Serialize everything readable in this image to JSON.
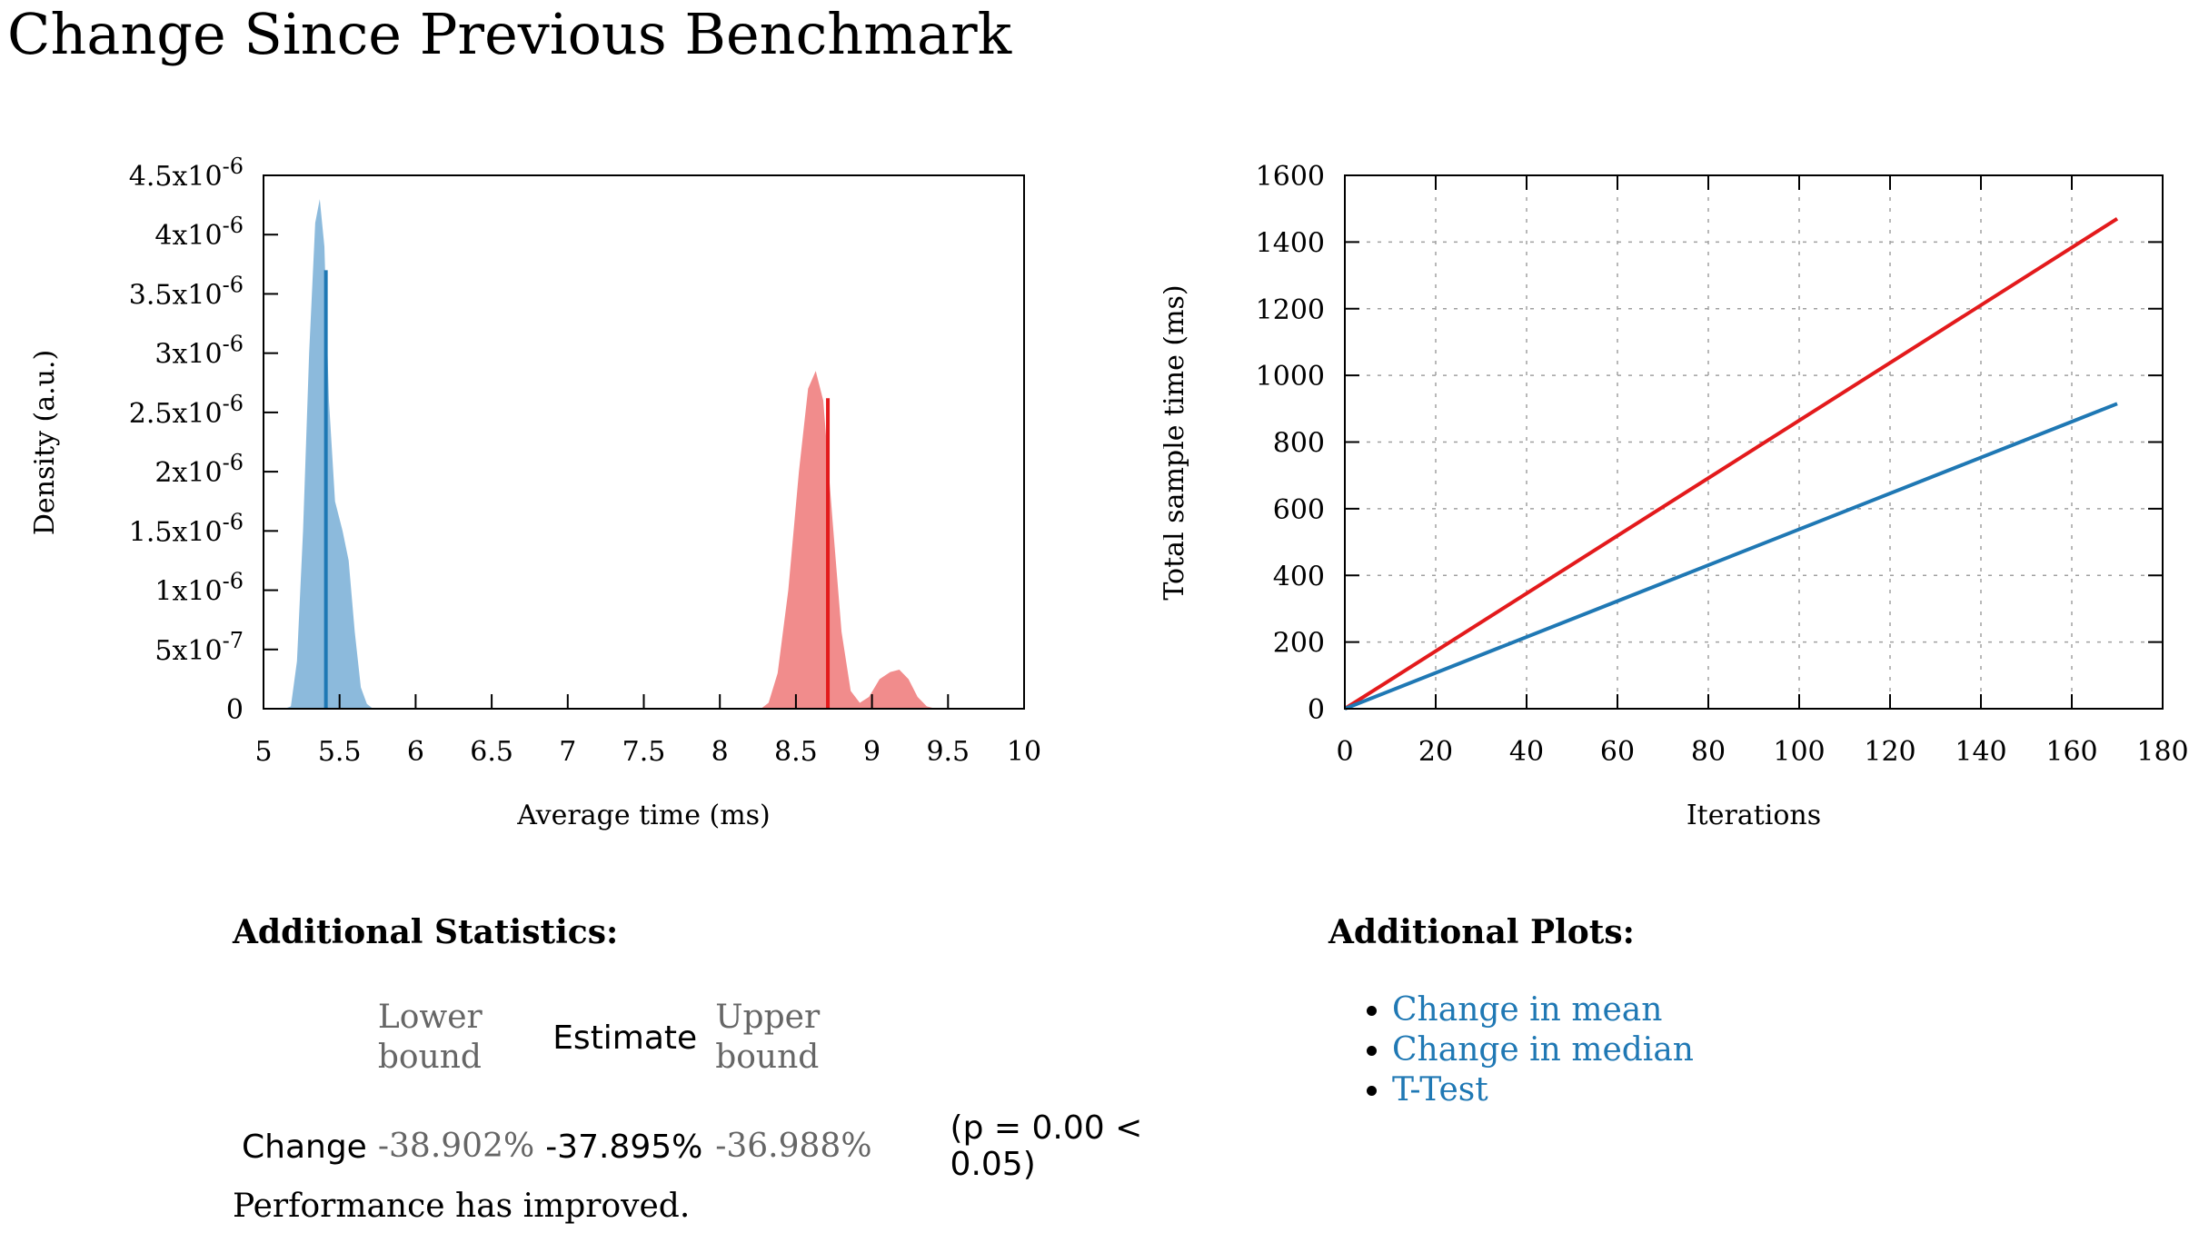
{
  "page": {
    "title": "Change Since Previous Benchmark"
  },
  "colors": {
    "blue": "#1f78b4",
    "blue_fill": "#7fb3d8",
    "red": "#e31a1c",
    "red_fill": "#f08080",
    "link": "#1f78b4"
  },
  "chart_data": [
    {
      "type": "area",
      "xlabel": "Average time (ms)",
      "ylabel": "Density (a.u.)",
      "xlim": [
        5,
        10
      ],
      "ylim": [
        0,
        4.5e-06
      ],
      "x_ticks": [
        "5",
        "5.5",
        "6",
        "6.5",
        "7",
        "7.5",
        "8",
        "8.5",
        "9",
        "9.5",
        "10"
      ],
      "y_ticks": [
        {
          "mantissa": "0",
          "exp": ""
        },
        {
          "mantissa": "5x10",
          "exp": "-7"
        },
        {
          "mantissa": "1x10",
          "exp": "-6"
        },
        {
          "mantissa": "1.5x10",
          "exp": "-6"
        },
        {
          "mantissa": "2x10",
          "exp": "-6"
        },
        {
          "mantissa": "2.5x10",
          "exp": "-6"
        },
        {
          "mantissa": "3x10",
          "exp": "-6"
        },
        {
          "mantissa": "3.5x10",
          "exp": "-6"
        },
        {
          "mantissa": "4x10",
          "exp": "-6"
        },
        {
          "mantissa": "4.5x10",
          "exp": "-6"
        }
      ],
      "series": [
        {
          "color": "#7fb3d8",
          "line_color": "#1f78b4",
          "points": [
            [
              5.14,
              0
            ],
            [
              5.18,
              2e-08
            ],
            [
              5.22,
              4e-07
            ],
            [
              5.26,
              1.5e-06
            ],
            [
              5.3,
              3e-06
            ],
            [
              5.34,
              4.1e-06
            ],
            [
              5.37,
              4.3e-06
            ],
            [
              5.4,
              3.9e-06
            ],
            [
              5.43,
              2.6e-06
            ],
            [
              5.47,
              1.75e-06
            ],
            [
              5.52,
              1.5e-06
            ],
            [
              5.56,
              1.25e-06
            ],
            [
              5.6,
              6.5e-07
            ],
            [
              5.64,
              1.8e-07
            ],
            [
              5.68,
              4e-08
            ],
            [
              5.72,
              0
            ]
          ],
          "estimate_x": 5.41,
          "estimate_y": 3.7e-06
        },
        {
          "color": "#f08080",
          "line_color": "#e31a1c",
          "points": [
            [
              8.27,
              0
            ],
            [
              8.32,
              5e-08
            ],
            [
              8.38,
              3e-07
            ],
            [
              8.45,
              1e-06
            ],
            [
              8.52,
              2e-06
            ],
            [
              8.58,
              2.7e-06
            ],
            [
              8.63,
              2.85e-06
            ],
            [
              8.68,
              2.6e-06
            ],
            [
              8.74,
              1.6e-06
            ],
            [
              8.8,
              6.5e-07
            ],
            [
              8.86,
              1.5e-07
            ],
            [
              8.92,
              5e-08
            ],
            [
              8.98,
              1e-07
            ],
            [
              9.05,
              2.5e-07
            ],
            [
              9.12,
              3.1e-07
            ],
            [
              9.18,
              3.3e-07
            ],
            [
              9.24,
              2.5e-07
            ],
            [
              9.3,
              1e-07
            ],
            [
              9.36,
              2e-08
            ],
            [
              9.42,
              0
            ]
          ],
          "estimate_x": 8.71,
          "estimate_y": 2.62e-06
        }
      ]
    },
    {
      "type": "line",
      "xlabel": "Iterations",
      "ylabel": "Total sample time (ms)",
      "xlim": [
        0,
        180
      ],
      "ylim": [
        0,
        1600
      ],
      "grid": true,
      "x_ticks": [
        "0",
        "20",
        "40",
        "60",
        "80",
        "100",
        "120",
        "140",
        "160",
        "180"
      ],
      "y_ticks": [
        "0",
        "200",
        "400",
        "600",
        "800",
        "1000",
        "1200",
        "1400",
        "1600"
      ],
      "series": [
        {
          "color": "#e31a1c",
          "x": [
            0,
            170
          ],
          "y": [
            0,
            1470
          ]
        },
        {
          "color": "#1f78b4",
          "x": [
            0,
            170
          ],
          "y": [
            0,
            915
          ]
        }
      ]
    }
  ],
  "stats": {
    "title": "Additional Statistics:",
    "headers": {
      "lower": "Lower bound",
      "estimate": "Estimate",
      "upper": "Upper bound"
    },
    "row": {
      "label": "Change",
      "lower": "-38.902%",
      "estimate": "-37.895%",
      "upper": "-36.988%",
      "p_value": "(p = 0.00 < 0.05)"
    },
    "verdict": "Performance has improved."
  },
  "plots": {
    "title": "Additional Plots:",
    "links": [
      "Change in mean",
      "Change in median",
      "T-Test"
    ]
  }
}
